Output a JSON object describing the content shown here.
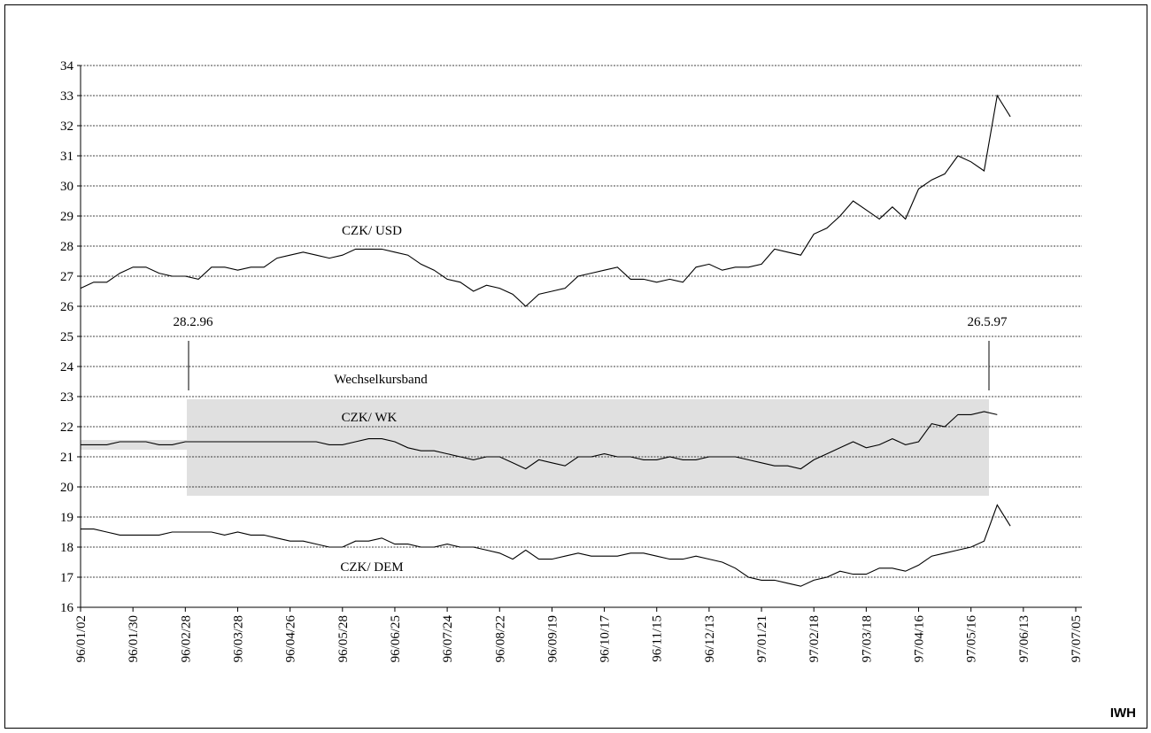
{
  "chart_data": {
    "type": "line",
    "categories": [
      "96/01/02",
      null,
      null,
      null,
      "96/01/30",
      null,
      null,
      null,
      "96/02/28",
      null,
      null,
      null,
      "96/03/28",
      null,
      null,
      null,
      "96/04/26",
      null,
      null,
      null,
      "96/05/28",
      null,
      null,
      null,
      "96/06/25",
      null,
      null,
      null,
      "96/07/24",
      null,
      null,
      null,
      "96/08/22",
      null,
      null,
      null,
      "96/09/19",
      null,
      null,
      null,
      "96/10/17",
      null,
      null,
      null,
      "96/11/15",
      null,
      null,
      null,
      "96/12/13",
      null,
      null,
      null,
      "97/01/21",
      null,
      null,
      null,
      "97/02/18",
      null,
      null,
      null,
      "97/03/18",
      null,
      null,
      null,
      "97/04/16",
      null,
      null,
      null,
      "97/05/16",
      null,
      null,
      null,
      "97/06/13",
      null,
      null,
      null,
      "97/07/05"
    ],
    "series": [
      {
        "name": "CZK/ USD",
        "color": "#000000",
        "values": [
          26.6,
          26.8,
          26.8,
          27.1,
          27.3,
          27.3,
          27.1,
          27.0,
          27.0,
          26.9,
          27.3,
          27.3,
          27.2,
          27.3,
          27.3,
          27.6,
          27.7,
          27.8,
          27.7,
          27.6,
          27.7,
          27.9,
          27.9,
          27.9,
          27.8,
          27.7,
          27.4,
          27.2,
          26.9,
          26.8,
          26.5,
          26.7,
          26.6,
          26.4,
          26.0,
          26.4,
          26.5,
          26.6,
          27.0,
          27.1,
          27.2,
          27.3,
          26.9,
          26.9,
          26.8,
          26.9,
          26.8,
          27.3,
          27.4,
          27.2,
          27.3,
          27.3,
          27.4,
          27.9,
          27.8,
          27.7,
          28.4,
          28.6,
          29.0,
          29.5,
          29.2,
          28.9,
          29.3,
          28.9,
          29.9,
          30.2,
          30.4,
          31.0,
          30.8,
          30.5,
          33.0,
          32.3,
          null,
          null,
          null,
          null,
          null
        ]
      },
      {
        "name": "CZK/ WK",
        "color": "#000000",
        "values": [
          21.4,
          21.4,
          21.4,
          21.5,
          21.5,
          21.5,
          21.4,
          21.4,
          21.5,
          21.5,
          21.5,
          21.5,
          21.5,
          21.5,
          21.5,
          21.5,
          21.5,
          21.5,
          21.5,
          21.4,
          21.4,
          21.5,
          21.6,
          21.6,
          21.5,
          21.3,
          21.2,
          21.2,
          21.1,
          21.0,
          20.9,
          21.0,
          21.0,
          20.8,
          20.6,
          20.9,
          20.8,
          20.7,
          21.0,
          21.0,
          21.1,
          21.0,
          21.0,
          20.9,
          20.9,
          21.0,
          20.9,
          20.9,
          21.0,
          21.0,
          21.0,
          20.9,
          20.8,
          20.7,
          20.7,
          20.6,
          20.9,
          21.1,
          21.3,
          21.5,
          21.3,
          21.4,
          21.6,
          21.4,
          21.5,
          22.1,
          22.0,
          22.4,
          22.4,
          22.5,
          22.4,
          null,
          null,
          null,
          null,
          null,
          null
        ]
      },
      {
        "name": "CZK/ DEM",
        "color": "#000000",
        "values": [
          18.6,
          18.6,
          18.5,
          18.4,
          18.4,
          18.4,
          18.4,
          18.5,
          18.5,
          18.5,
          18.5,
          18.4,
          18.5,
          18.4,
          18.4,
          18.3,
          18.2,
          18.2,
          18.1,
          18.0,
          18.0,
          18.2,
          18.2,
          18.3,
          18.1,
          18.1,
          18.0,
          18.0,
          18.1,
          18.0,
          18.0,
          17.9,
          17.8,
          17.6,
          17.9,
          17.6,
          17.6,
          17.7,
          17.8,
          17.7,
          17.7,
          17.7,
          17.8,
          17.8,
          17.7,
          17.6,
          17.6,
          17.7,
          17.6,
          17.5,
          17.3,
          17.0,
          16.9,
          16.9,
          16.8,
          16.7,
          16.9,
          17.0,
          17.2,
          17.1,
          17.1,
          17.3,
          17.3,
          17.2,
          17.4,
          17.7,
          17.8,
          17.9,
          18.0,
          18.2,
          19.4,
          18.7,
          null,
          null,
          null,
          null,
          null
        ]
      }
    ],
    "ylim": [
      16,
      34
    ],
    "yticks": [
      16,
      17,
      18,
      19,
      20,
      21,
      22,
      23,
      24,
      25,
      26,
      27,
      28,
      29,
      30,
      31,
      32,
      33,
      34
    ],
    "grid": true,
    "annotations": [
      "CZK/ USD",
      "28.2.96",
      "26.5.97",
      "Wechselkursband",
      "CZK/ WK",
      "CZK/ DEM"
    ],
    "source": "IWH"
  }
}
